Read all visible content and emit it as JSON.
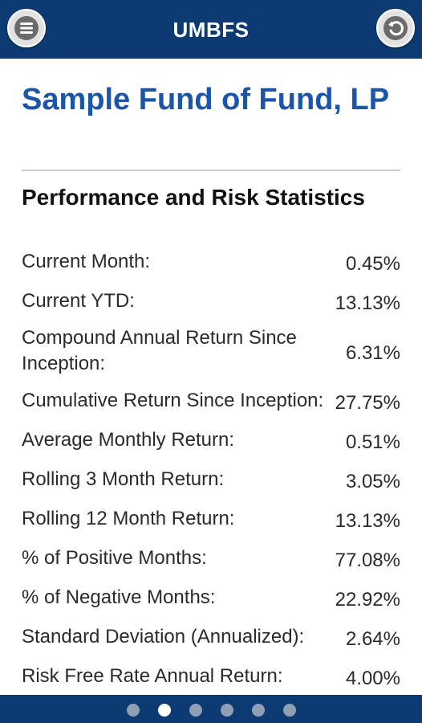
{
  "header": {
    "title": "UMBFS",
    "menu_icon": "menu-icon",
    "back_icon": "back-arrow-icon"
  },
  "fund": {
    "name": "Sample Fund of Fund, LP"
  },
  "section": {
    "title": "Performance and Risk Statistics"
  },
  "stats": [
    {
      "label": "Current Month:",
      "value": "0.45%"
    },
    {
      "label": "Current YTD:",
      "value": "13.13%"
    },
    {
      "label": "Compound Annual Return Since Inception:",
      "value": "6.31%"
    },
    {
      "label": "Cumulative Return Since Inception:",
      "value": "27.75%"
    },
    {
      "label": "Average Monthly Return:",
      "value": "0.51%"
    },
    {
      "label": "Rolling 3 Month Return:",
      "value": "3.05%"
    },
    {
      "label": "Rolling 12 Month Return:",
      "value": "13.13%"
    },
    {
      "label": "% of Positive Months:",
      "value": "77.08%"
    },
    {
      "label": "% of Negative Months:",
      "value": "22.92%"
    },
    {
      "label": "Standard Deviation (Annualized):",
      "value": "2.64%"
    },
    {
      "label": "Risk Free Rate Annual Return:",
      "value": "4.00%"
    }
  ],
  "pager": {
    "total": 6,
    "active": 1
  },
  "colors": {
    "header_bg": "#0c3a72",
    "title_blue": "#1a55a8"
  }
}
